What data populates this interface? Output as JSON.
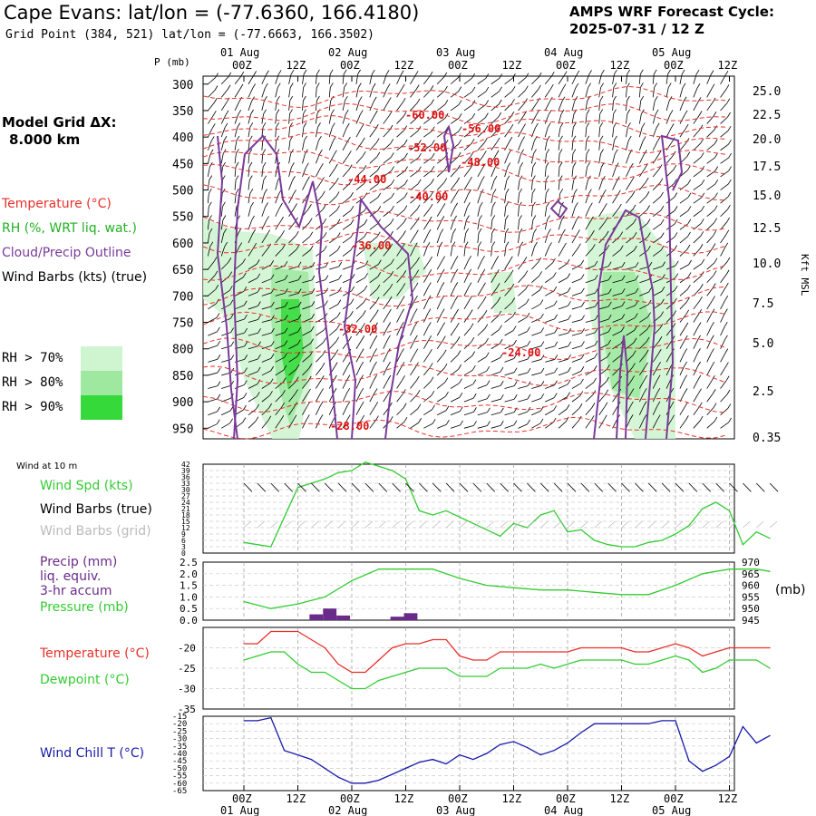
{
  "header": {
    "title": "Cape Evans:  lat/lon = (-77.6360, 166.4180)",
    "subtitle": "Grid Point (384, 521) lat/lon = (-77.6663, 166.3502)",
    "cycle_line1": "AMPS WRF Forecast Cycle:",
    "cycle_line2": "2025-07-31 / 12  Z"
  },
  "sidebar": {
    "grid_label": "Model Grid ΔX:",
    "grid_value": "8.000 km",
    "legend": [
      {
        "label": "Temperature (°C)",
        "color": "#e8302a"
      },
      {
        "label": "RH (%, WRT liq. wat.)",
        "color": "#22b022"
      },
      {
        "label": "Cloud/Precip Outline",
        "color": "#7a3a9a"
      },
      {
        "label": "Wind Barbs (kts) (true)",
        "color": "#000000"
      }
    ],
    "rh_key": [
      {
        "label": "RH > 70%",
        "color": "#cef5cf"
      },
      {
        "label": "RH > 80%",
        "color": "#9ee89f"
      },
      {
        "label": "RH > 90%",
        "color": "#35da3a"
      }
    ]
  },
  "lower_labels": {
    "wind10m": "Wind at 10 m",
    "wind_spd": "Wind Spd (kts)",
    "wind_barbs_true": "Wind Barbs (true)",
    "wind_barbs_grid": "Wind Barbs (grid)",
    "precip_1": "Precip (mm)",
    "precip_2": "liq. equiv.",
    "precip_3": "3-hr accum",
    "pressure": "Pressure (mb)",
    "pressure_unit": "(mb)",
    "temperature": "Temperature (°C)",
    "dewpoint": "Dewpoint (°C)",
    "windchill": "Wind Chill T (°C)"
  },
  "colors": {
    "temperature": "#e8302a",
    "rh": "#22b022",
    "cloud": "#7a3a9a",
    "windspd": "#33cc33",
    "precip": "#6a2a8a",
    "windchill": "#1a1aaa",
    "grid": "#999999"
  },
  "chart_data": [
    {
      "type": "heatmap",
      "name": "cross-section",
      "y_label": "P (mb)",
      "right_label": "Kft MSL",
      "x_ticks": [
        "00Z",
        "12Z",
        "00Z",
        "12Z",
        "00Z",
        "12Z",
        "00Z",
        "12Z",
        "00Z",
        "12Z"
      ],
      "date_labels": [
        "01 Aug",
        "02 Aug",
        "03 Aug",
        "04 Aug",
        "05 Aug"
      ],
      "pressure_ticks": [
        300,
        350,
        400,
        450,
        500,
        550,
        600,
        650,
        700,
        750,
        800,
        850,
        900,
        950
      ],
      "height_ticks": [
        "25.0",
        "22.5",
        "20.0",
        "17.5",
        "15.0",
        "12.5",
        "10.0",
        "7.5",
        "5.0",
        "2.5",
        "0.35"
      ],
      "temp_labels": [
        "-60.00",
        "-56.00",
        "-52.00",
        "-48.00",
        "-44.00",
        "-40.00",
        "-36.00",
        "-32.00",
        "-24.00",
        "-28.00"
      ]
    },
    {
      "type": "line",
      "name": "wind speed 10 m",
      "y_ticks": [
        "42",
        "39",
        "36",
        "33",
        "30",
        "27",
        "24",
        "21",
        "18",
        "15",
        "12",
        "9",
        "6",
        "3",
        "0"
      ],
      "x": [
        0,
        3,
        6,
        9,
        12,
        15,
        18,
        21,
        24,
        27,
        30,
        33,
        36,
        39,
        42,
        45,
        48,
        51,
        54,
        57,
        60,
        63,
        66,
        69,
        72,
        75,
        78,
        81,
        84,
        87,
        90,
        93,
        96,
        99,
        102,
        105,
        108,
        111,
        114,
        117
      ],
      "values": [
        5,
        4,
        3,
        17,
        31,
        33,
        35,
        38,
        39,
        43,
        41,
        39,
        35,
        20,
        18,
        20,
        17,
        14,
        11,
        8,
        14,
        12,
        18,
        20,
        10,
        11,
        6,
        4,
        3,
        3,
        5,
        6,
        9,
        13,
        21,
        24,
        20,
        4,
        10,
        7
      ]
    },
    {
      "type": "line",
      "name": "pressure",
      "y_ticks_left": [
        "2.5",
        "2.0",
        "1.5",
        "1.0",
        "0.5",
        "0.0"
      ],
      "y_ticks_right": [
        "970",
        "965",
        "960",
        "955",
        "950",
        "945"
      ],
      "x": [
        0,
        6,
        12,
        18,
        24,
        30,
        36,
        42,
        48,
        54,
        60,
        66,
        72,
        78,
        84,
        90,
        96,
        102,
        108,
        114,
        117
      ],
      "values": [
        953,
        950,
        952,
        955,
        962,
        967,
        967,
        967,
        963,
        960,
        959,
        958,
        958,
        957,
        956,
        956,
        960,
        965,
        967,
        967,
        966
      ],
      "precip_x": [
        15,
        18,
        21,
        33,
        36
      ],
      "precip_values": [
        0.25,
        0.5,
        0.2,
        0.15,
        0.3
      ]
    },
    {
      "type": "line",
      "name": "temperature and dewpoint",
      "y_ticks": [
        "-20",
        "-25",
        "-30",
        "-35"
      ],
      "x": [
        0,
        3,
        6,
        9,
        12,
        15,
        18,
        21,
        24,
        27,
        30,
        33,
        36,
        39,
        42,
        45,
        48,
        51,
        54,
        57,
        60,
        63,
        66,
        69,
        72,
        75,
        78,
        81,
        84,
        87,
        90,
        93,
        96,
        99,
        102,
        105,
        108,
        111,
        114,
        117
      ],
      "temperature": [
        -19,
        -19,
        -16,
        -16,
        -16,
        -18,
        -20,
        -24,
        -26,
        -26,
        -23,
        -20,
        -19,
        -19,
        -18,
        -18,
        -22,
        -23,
        -23,
        -21,
        -21,
        -21,
        -21,
        -21,
        -21,
        -20,
        -20,
        -20,
        -20,
        -21,
        -21,
        -20,
        -19,
        -20,
        -22,
        -21,
        -20,
        -20,
        -20,
        -20
      ],
      "dewpoint": [
        -23,
        -22,
        -21,
        -21,
        -24,
        -26,
        -26,
        -28,
        -30,
        -30,
        -28,
        -27,
        -26,
        -25,
        -25,
        -25,
        -27,
        -27,
        -27,
        -25,
        -25,
        -25,
        -24,
        -25,
        -24,
        -23,
        -23,
        -23,
        -23,
        -24,
        -24,
        -23,
        -22,
        -23,
        -26,
        -25,
        -23,
        -23,
        -23,
        -25
      ]
    },
    {
      "type": "line",
      "name": "wind chill",
      "y_ticks": [
        "-15",
        "-20",
        "-25",
        "-30",
        "-35",
        "-40",
        "-45",
        "-50",
        "-55",
        "-60",
        "-65"
      ],
      "x": [
        0,
        3,
        6,
        9,
        12,
        15,
        18,
        21,
        24,
        27,
        30,
        33,
        36,
        39,
        42,
        45,
        48,
        51,
        54,
        57,
        60,
        63,
        66,
        69,
        72,
        75,
        78,
        81,
        84,
        87,
        90,
        93,
        96,
        99,
        102,
        105,
        108,
        111,
        114,
        117
      ],
      "values": [
        -18,
        -18,
        -16,
        -38,
        -41,
        -44,
        -50,
        -56,
        -60,
        -60,
        -58,
        -54,
        -50,
        -46,
        -44,
        -47,
        -41,
        -44,
        -40,
        -34,
        -32,
        -36,
        -41,
        -38,
        -33,
        -26,
        -20,
        -20,
        -20,
        -20,
        -20,
        -18,
        -18,
        -45,
        -52,
        -48,
        -42,
        -22,
        -33,
        -28
      ]
    }
  ]
}
